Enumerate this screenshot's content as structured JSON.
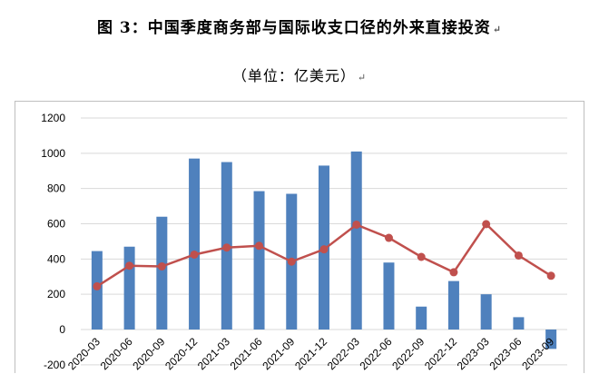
{
  "page": {
    "title": "图 3：中国季度商务部与国际收支口径的外来直接投资",
    "subtitle": "（单位：亿美元）",
    "paragraph_mark": "↵"
  },
  "colors": {
    "bar": "#4f81bd",
    "line": "#c0504d",
    "grid": "#d9d9d9",
    "frame": "#bfbfbf"
  },
  "chart_data": {
    "type": "bar",
    "categories": [
      "2020-03",
      "2020-06",
      "2020-09",
      "2020-12",
      "2021-03",
      "2021-06",
      "2021-09",
      "2021-12",
      "2022-03",
      "2022-06",
      "2022-09",
      "2022-12",
      "2023-03",
      "2023-06",
      "2023-09"
    ],
    "series": [
      {
        "type": "bar",
        "values": [
          445,
          470,
          640,
          970,
          950,
          785,
          770,
          930,
          1010,
          380,
          130,
          275,
          200,
          70,
          -110
        ]
      },
      {
        "type": "line",
        "values": [
          245,
          362,
          358,
          425,
          465,
          475,
          385,
          455,
          595,
          520,
          412,
          325,
          598,
          420,
          305
        ]
      }
    ],
    "yticks": [
      -200,
      0,
      200,
      400,
      600,
      800,
      1000,
      1200
    ],
    "ylim": [
      -200,
      1200
    ],
    "grid": true,
    "legend": "none",
    "title": "图 3：中国季度商务部与国际收支口径的外来直接投资",
    "subtitle": "（单位：亿美元）"
  }
}
